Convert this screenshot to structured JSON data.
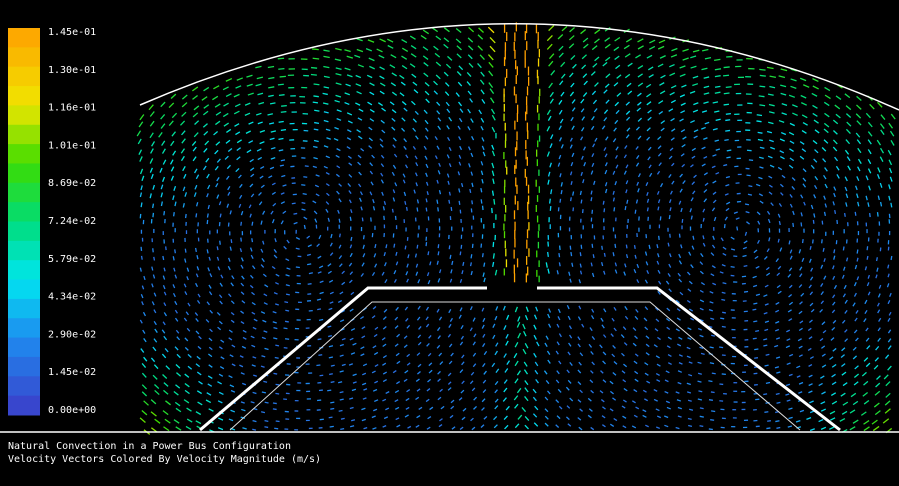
{
  "colorbar": {
    "labels": [
      "1.45e-01",
      "1.30e-01",
      "1.16e-01",
      "1.01e-01",
      "8.69e-02",
      "7.24e-02",
      "5.79e-02",
      "4.34e-02",
      "2.90e-02",
      "1.45e-02",
      "0.00e+00"
    ]
  },
  "caption": {
    "lines": [
      "Natural Convection in a Power Bus Configuration",
      "Velocity Vectors Colored By Velocity Magnitude (m/s)"
    ]
  }
}
